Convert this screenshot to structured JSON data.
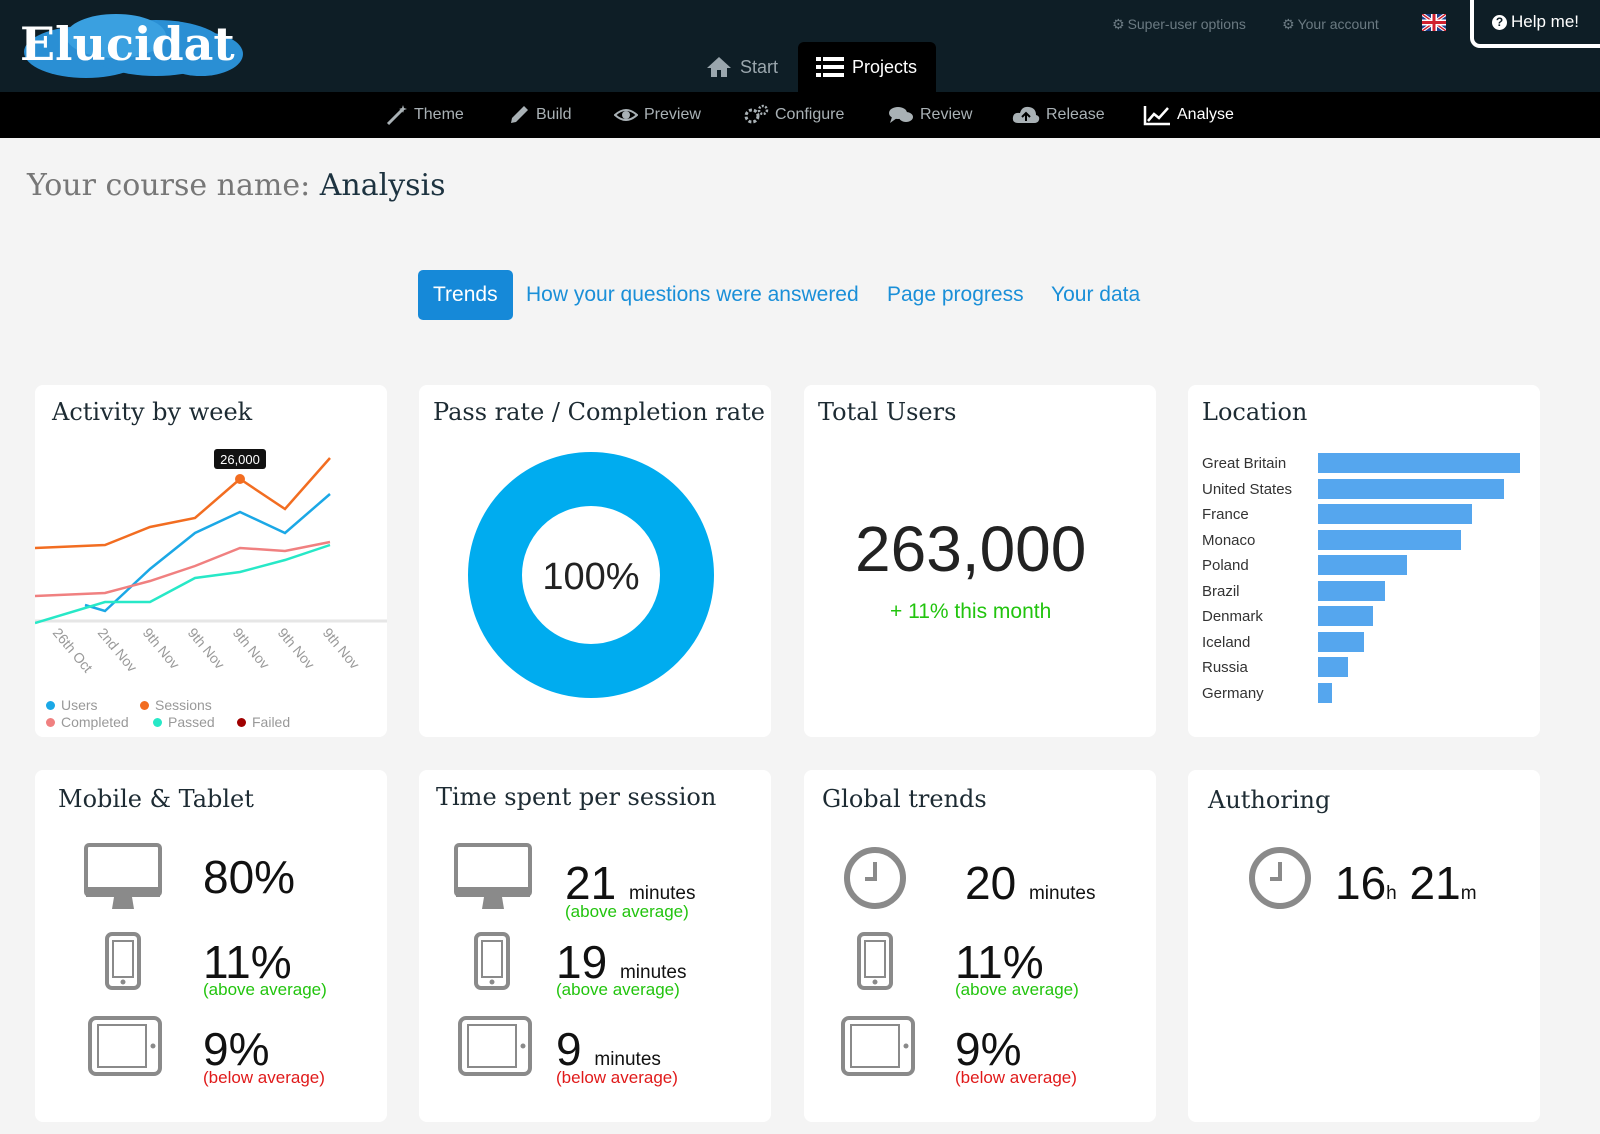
{
  "app": {
    "logo_text": "Elucidat",
    "super_user_label": "Super-user options",
    "account_label": "Your account",
    "help_label": "Help me!"
  },
  "main_tabs": [
    {
      "label": "Start",
      "icon": "home-icon"
    },
    {
      "label": "Projects",
      "icon": "list-icon",
      "active": true
    }
  ],
  "sub_nav": [
    {
      "label": "Theme",
      "icon": "wand-icon"
    },
    {
      "label": "Build",
      "icon": "pencil-icon"
    },
    {
      "label": "Preview",
      "icon": "eye-icon"
    },
    {
      "label": "Configure",
      "icon": "gears-icon"
    },
    {
      "label": "Review",
      "icon": "comments-icon"
    },
    {
      "label": "Release",
      "icon": "cloud-upload-icon"
    },
    {
      "label": "Analyse",
      "icon": "line-chart-icon",
      "active": true
    }
  ],
  "page": {
    "title_prefix": "Your course name:",
    "title_main": "Analysis"
  },
  "tabs": [
    {
      "label": "Trends",
      "active": true
    },
    {
      "label": "How your questions were answered"
    },
    {
      "label": "Page progress"
    },
    {
      "label": "Your data"
    }
  ],
  "activity": {
    "title": "Activity by week",
    "tooltip": "26,000",
    "legend": [
      {
        "label": "Users",
        "color": "#1ba8e6"
      },
      {
        "label": "Sessions",
        "color": "#f26d21"
      },
      {
        "label": "Completed",
        "color": "#f08080"
      },
      {
        "label": "Passed",
        "color": "#27e8c7"
      },
      {
        "label": "Failed",
        "color": "#a00000"
      }
    ]
  },
  "pass_rate": {
    "title": "Pass rate / Completion rate",
    "value_label": "100%",
    "color": "#00acef"
  },
  "total_users": {
    "title": "Total Users",
    "value": "263,000",
    "change": "+ 11% this month"
  },
  "location": {
    "title": "Location",
    "bar_color": "#55a6ee"
  },
  "mobile_tablet": {
    "title": "Mobile & Tablet",
    "desktop": "80%",
    "phone": "11%",
    "phone_note": "(above average)",
    "tablet": "9%",
    "tablet_note": "(below average)"
  },
  "time_spent": {
    "title": "Time spent per session",
    "unit": "minutes",
    "desktop": "21",
    "desktop_note": "(above average)",
    "phone": "19",
    "phone_note": "(above average)",
    "tablet": "9",
    "tablet_note": "(below average)"
  },
  "global_trends": {
    "title": "Global trends",
    "time": "20",
    "unit": "minutes",
    "phone": "11%",
    "phone_note": "(above average)",
    "tablet": "9%",
    "tablet_note": "(below average)"
  },
  "authoring": {
    "title": "Authoring",
    "hours": "16",
    "hours_unit": "h",
    "minutes": "21",
    "minutes_unit": "m"
  },
  "chart_data": [
    {
      "type": "line",
      "title": "Activity by week",
      "x": [
        "26th Oct",
        "2nd Nov",
        "9th Nov",
        "9th Nov",
        "9th Nov",
        "9th Nov",
        "9th Nov"
      ],
      "series": [
        {
          "name": "Users",
          "values": [
            5000,
            4000,
            11000,
            17000,
            20500,
            17000,
            23500
          ]
        },
        {
          "name": "Sessions",
          "values": [
            14500,
            15000,
            18000,
            19500,
            26000,
            21000,
            29500
          ]
        },
        {
          "name": "Completed",
          "values": [
            6500,
            7000,
            9000,
            11500,
            14500,
            14000,
            15500
          ]
        },
        {
          "name": "Passed",
          "values": [
            2000,
            5500,
            5500,
            9500,
            10500,
            12500,
            15000
          ]
        }
      ],
      "ylim": [
        0,
        30000
      ]
    },
    {
      "type": "pie",
      "title": "Pass rate / Completion rate",
      "values": [
        100
      ]
    },
    {
      "type": "bar",
      "title": "Location",
      "categories": [
        "Great Britain",
        "United States",
        "France",
        "Monaco",
        "Poland",
        "Brazil",
        "Denmark",
        "Iceland",
        "Russia",
        "Germany"
      ],
      "values": [
        100,
        92,
        76,
        71,
        44,
        33,
        27,
        23,
        15,
        7
      ]
    }
  ]
}
